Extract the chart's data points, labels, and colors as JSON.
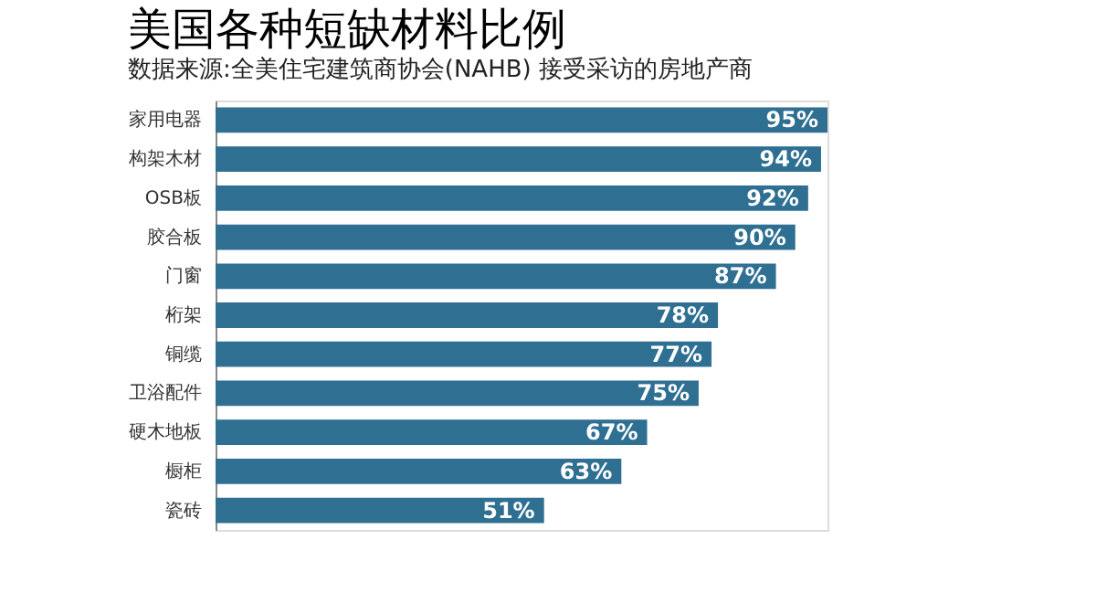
{
  "chart_data": {
    "type": "bar",
    "orientation": "horizontal",
    "title": "美国各种短缺材料比例",
    "subtitle": "数据来源:全美住宅建筑商协会(NAHB) 接受采访的房地产商",
    "categories": [
      "家用电器",
      "构架木材",
      "OSB板",
      "胶合板",
      "门窗",
      "桁架",
      "铜缆",
      "卫浴配件",
      "硬木地板",
      "橱柜",
      "瓷砖"
    ],
    "values": [
      95,
      94,
      92,
      90,
      87,
      78,
      77,
      75,
      67,
      63,
      51
    ],
    "value_labels": [
      "95%",
      "94%",
      "92%",
      "90%",
      "87%",
      "78%",
      "77%",
      "75%",
      "67%",
      "63%",
      "51%"
    ],
    "color": "#2e6f92"
  }
}
